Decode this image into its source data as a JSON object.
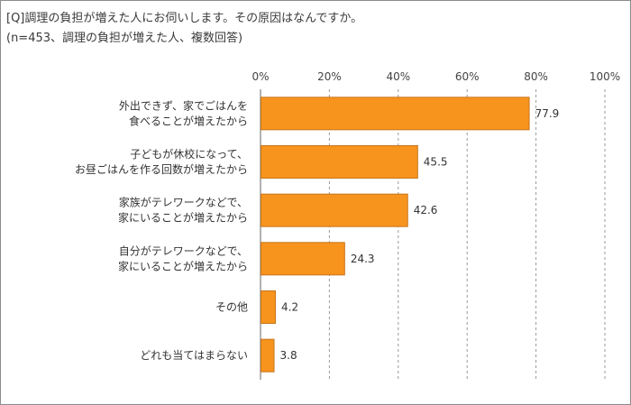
{
  "title": "[Q]調理の負担が増えた人にお伺いします。その原因はなんですか。",
  "subtitle": "(n=453、調理の負担が増えた人、複数回答)",
  "colors": {
    "bar": "#f7941d",
    "bar_border": "#c8741a",
    "grid": "#999999",
    "axis": "#666666"
  },
  "chart_data": {
    "type": "bar",
    "orientation": "horizontal",
    "categories": [
      [
        "外出できず、家でごはんを",
        "食べることが増えたから"
      ],
      [
        "子どもが休校になって、",
        "お昼ごはんを作る回数が増えたから"
      ],
      [
        "家族がテレワークなどで、",
        "家にいることが増えたから"
      ],
      [
        "自分がテレワークなどで、",
        "家にいることが増えたから"
      ],
      [
        "その他"
      ],
      [
        "どれも当てはまらない"
      ]
    ],
    "values": [
      77.9,
      45.5,
      42.6,
      24.3,
      4.2,
      3.8
    ],
    "value_labels": [
      "77.9",
      "45.5",
      "42.6",
      "24.3",
      "4.2",
      "3.8"
    ],
    "xlim": [
      0,
      100
    ],
    "xticks": [
      "0%",
      "20%",
      "40%",
      "60%",
      "80%",
      "100%"
    ],
    "grid": "vertical dashed",
    "legend": "none"
  }
}
